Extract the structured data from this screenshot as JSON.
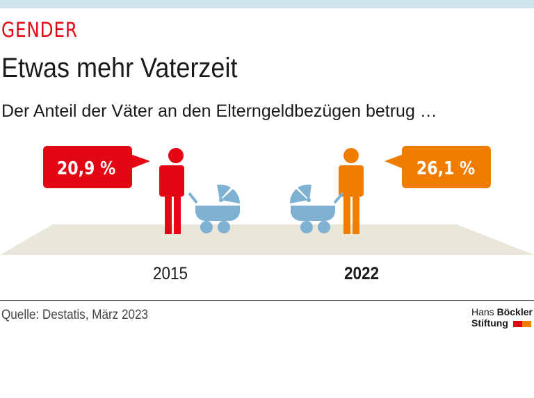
{
  "header": {
    "kicker": "GENDER",
    "title": "Etwas mehr Vaterzeit",
    "subtitle": "Der Anteil der Väter an den Elterngeldbezügen betrug …"
  },
  "chart_data": {
    "type": "pictogram",
    "categories": [
      "2015",
      "2022"
    ],
    "values": [
      20.9,
      26.1
    ],
    "value_labels": [
      "20,9 %",
      "26,1 %"
    ],
    "unit": "%",
    "colors": [
      "#e30613",
      "#f07d00"
    ],
    "highlight_category": "2022"
  },
  "colors": {
    "accent": "#e30613",
    "pram": "#7fb1d3",
    "floor": "#e9e7d9",
    "topbar": "#cfe5ee"
  },
  "footer": {
    "source": "Quelle: Destatis, März 2023",
    "logo_line1_a": "Hans ",
    "logo_line1_b": "Böckler",
    "logo_line2": "Stiftung"
  }
}
